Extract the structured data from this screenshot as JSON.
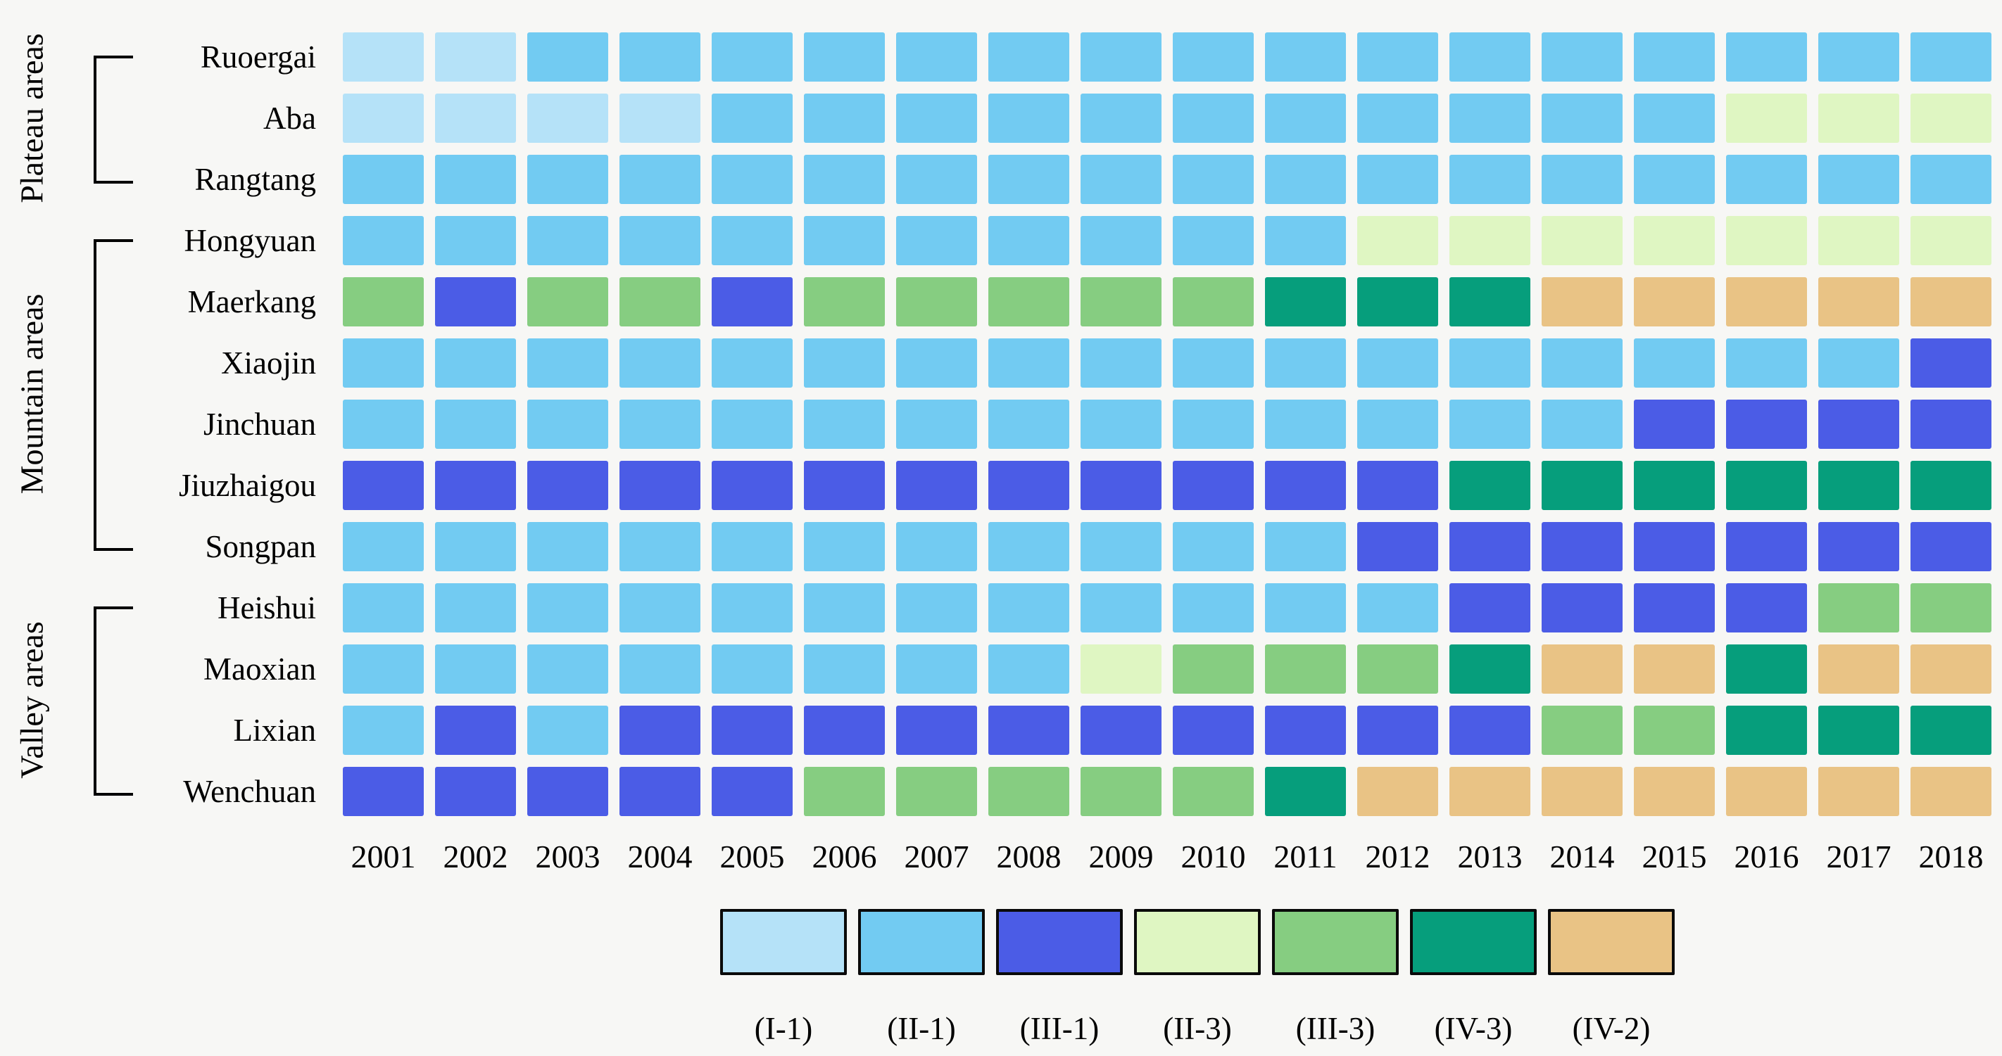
{
  "figure": {
    "background": "#f7f7f5"
  },
  "chart_data": {
    "type": "heatmap",
    "x": [
      "2001",
      "2002",
      "2003",
      "2004",
      "2005",
      "2006",
      "2007",
      "2008",
      "2009",
      "2010",
      "2011",
      "2012",
      "2013",
      "2014",
      "2015",
      "2016",
      "2017",
      "2018"
    ],
    "row_groups": [
      {
        "label": "Plateau areas",
        "rows": [
          "Ruoergai",
          "Aba",
          "Rangtang"
        ]
      },
      {
        "label": "Mountain areas",
        "rows": [
          "Hongyuan",
          "Maerkang",
          "Xiaojin",
          "Jinchuan",
          "Jiuzhaigou",
          "Songpan"
        ]
      },
      {
        "label": "Valley areas",
        "rows": [
          "Heishui",
          "Maoxian",
          "Lixian",
          "Wenchuan"
        ]
      }
    ],
    "rows": [
      {
        "name": "Ruoergai",
        "values": [
          "I-1",
          "I-1",
          "II-1",
          "II-1",
          "II-1",
          "II-1",
          "II-1",
          "II-1",
          "II-1",
          "II-1",
          "II-1",
          "II-1",
          "II-1",
          "II-1",
          "II-1",
          "II-1",
          "II-1",
          "II-1"
        ]
      },
      {
        "name": "Aba",
        "values": [
          "I-1",
          "I-1",
          "I-1",
          "I-1",
          "II-1",
          "II-1",
          "II-1",
          "II-1",
          "II-1",
          "II-1",
          "II-1",
          "II-1",
          "II-1",
          "II-1",
          "II-1",
          "II-3",
          "II-3",
          "II-3"
        ]
      },
      {
        "name": "Rangtang",
        "values": [
          "II-1",
          "II-1",
          "II-1",
          "II-1",
          "II-1",
          "II-1",
          "II-1",
          "II-1",
          "II-1",
          "II-1",
          "II-1",
          "II-1",
          "II-1",
          "II-1",
          "II-1",
          "II-1",
          "II-1",
          "II-1"
        ]
      },
      {
        "name": "Hongyuan",
        "values": [
          "II-1",
          "II-1",
          "II-1",
          "II-1",
          "II-1",
          "II-1",
          "II-1",
          "II-1",
          "II-1",
          "II-1",
          "II-1",
          "II-3",
          "II-3",
          "II-3",
          "II-3",
          "II-3",
          "II-3",
          "II-3"
        ]
      },
      {
        "name": "Maerkang",
        "values": [
          "III-3",
          "III-1",
          "III-3",
          "III-3",
          "III-1",
          "III-3",
          "III-3",
          "III-3",
          "III-3",
          "III-3",
          "IV-3",
          "IV-3",
          "IV-3",
          "IV-2",
          "IV-2",
          "IV-2",
          "IV-2",
          "IV-2"
        ]
      },
      {
        "name": "Xiaojin",
        "values": [
          "II-1",
          "II-1",
          "II-1",
          "II-1",
          "II-1",
          "II-1",
          "II-1",
          "II-1",
          "II-1",
          "II-1",
          "II-1",
          "II-1",
          "II-1",
          "II-1",
          "II-1",
          "II-1",
          "II-1",
          "III-1"
        ]
      },
      {
        "name": "Jinchuan",
        "values": [
          "II-1",
          "II-1",
          "II-1",
          "II-1",
          "II-1",
          "II-1",
          "II-1",
          "II-1",
          "II-1",
          "II-1",
          "II-1",
          "II-1",
          "II-1",
          "II-1",
          "III-1",
          "III-1",
          "III-1",
          "III-1"
        ]
      },
      {
        "name": "Jiuzhaigou",
        "values": [
          "III-1",
          "III-1",
          "III-1",
          "III-1",
          "III-1",
          "III-1",
          "III-1",
          "III-1",
          "III-1",
          "III-1",
          "III-1",
          "III-1",
          "IV-3",
          "IV-3",
          "IV-3",
          "IV-3",
          "IV-3",
          "IV-3"
        ]
      },
      {
        "name": "Songpan",
        "values": [
          "II-1",
          "II-1",
          "II-1",
          "II-1",
          "II-1",
          "II-1",
          "II-1",
          "II-1",
          "II-1",
          "II-1",
          "II-1",
          "III-1",
          "III-1",
          "III-1",
          "III-1",
          "III-1",
          "III-1",
          "III-1"
        ]
      },
      {
        "name": "Heishui",
        "values": [
          "II-1",
          "II-1",
          "II-1",
          "II-1",
          "II-1",
          "II-1",
          "II-1",
          "II-1",
          "II-1",
          "II-1",
          "II-1",
          "II-1",
          "III-1",
          "III-1",
          "III-1",
          "III-1",
          "III-3",
          "III-3"
        ]
      },
      {
        "name": "Maoxian",
        "values": [
          "II-1",
          "II-1",
          "II-1",
          "II-1",
          "II-1",
          "II-1",
          "II-1",
          "II-1",
          "II-3",
          "III-3",
          "III-3",
          "III-3",
          "IV-3",
          "IV-2",
          "IV-2",
          "IV-3",
          "IV-2",
          "IV-2"
        ]
      },
      {
        "name": "Lixian",
        "values": [
          "II-1",
          "III-1",
          "II-1",
          "III-1",
          "III-1",
          "III-1",
          "III-1",
          "III-1",
          "III-1",
          "III-1",
          "III-1",
          "III-1",
          "III-1",
          "III-3",
          "III-3",
          "IV-3",
          "IV-3",
          "IV-3"
        ]
      },
      {
        "name": "Wenchuan",
        "values": [
          "III-1",
          "III-1",
          "III-1",
          "III-1",
          "III-1",
          "III-3",
          "III-3",
          "III-3",
          "III-3",
          "III-3",
          "IV-3",
          "IV-2",
          "IV-2",
          "IV-2",
          "IV-2",
          "IV-2",
          "IV-2",
          "IV-2"
        ]
      }
    ],
    "legend": [
      {
        "code": "I-1",
        "label": "(I-1)",
        "color": "#b5e2f8"
      },
      {
        "code": "II-1",
        "label": "(II-1)",
        "color": "#72cbf2"
      },
      {
        "code": "III-1",
        "label": "(III-1)",
        "color": "#4b5ce6"
      },
      {
        "code": "II-3",
        "label": "(II-3)",
        "color": "#dff6c2"
      },
      {
        "code": "III-3",
        "label": "(III-3)",
        "color": "#86cd81"
      },
      {
        "code": "IV-3",
        "label": "(IV-3)",
        "color": "#069e7c"
      },
      {
        "code": "IV-2",
        "label": "(IV-2)",
        "color": "#e9c385"
      }
    ],
    "layout": {
      "grid_on": false,
      "legend_position": "bottom",
      "axis_color": "#000000",
      "bracket_color": "#000000"
    }
  }
}
